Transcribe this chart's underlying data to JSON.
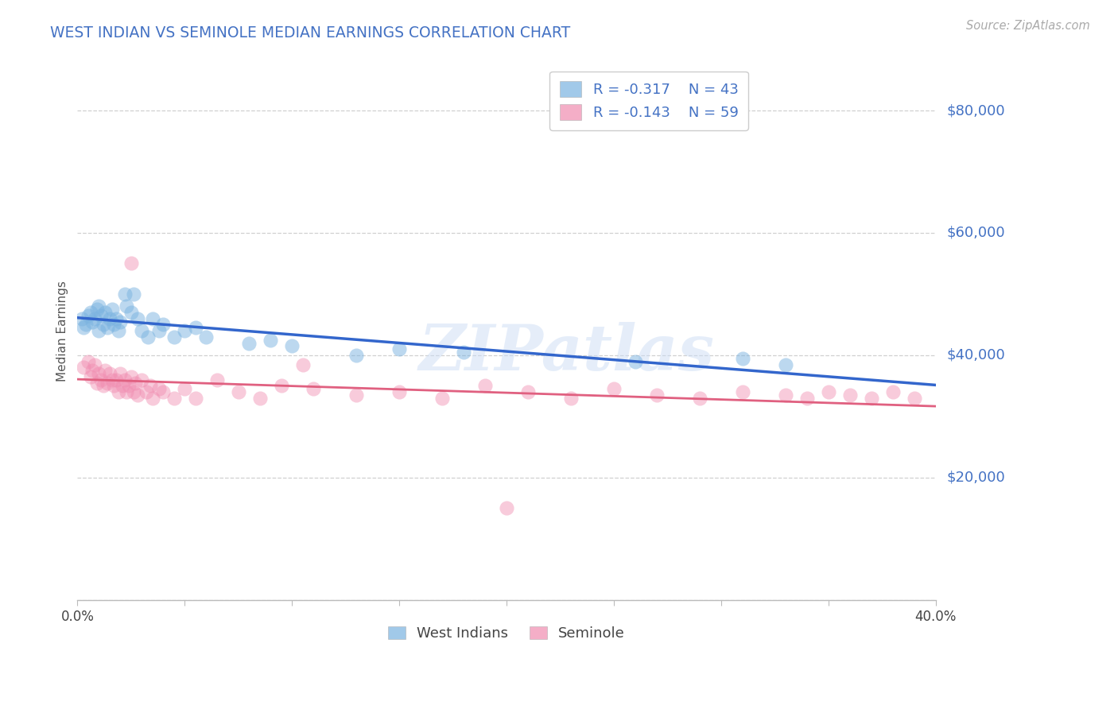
{
  "title": "WEST INDIAN VS SEMINOLE MEDIAN EARNINGS CORRELATION CHART",
  "source": "Source: ZipAtlas.com",
  "ylabel": "Median Earnings",
  "x_min": 0.0,
  "x_max": 0.4,
  "y_min": 0,
  "y_max": 88000,
  "yticks": [
    0,
    20000,
    40000,
    60000,
    80000
  ],
  "xticks": [
    0.0,
    0.05,
    0.1,
    0.15,
    0.2,
    0.25,
    0.3,
    0.35,
    0.4
  ],
  "blue_R": -0.317,
  "blue_N": 43,
  "pink_R": -0.143,
  "pink_N": 59,
  "blue_color": "#7ab3e0",
  "pink_color": "#f08cb0",
  "blue_line_color": "#3366cc",
  "pink_line_color": "#e06080",
  "title_color": "#4472c4",
  "right_label_color": "#4472c4",
  "grid_color": "#d0d0d0",
  "legend_label_blue": "West Indians",
  "legend_label_pink": "Seminole",
  "watermark": "ZIPatlas",
  "blue_scatter_x": [
    0.002,
    0.003,
    0.004,
    0.005,
    0.006,
    0.007,
    0.008,
    0.009,
    0.01,
    0.01,
    0.011,
    0.012,
    0.013,
    0.014,
    0.015,
    0.016,
    0.017,
    0.018,
    0.019,
    0.02,
    0.022,
    0.023,
    0.025,
    0.026,
    0.028,
    0.03,
    0.033,
    0.035,
    0.038,
    0.04,
    0.045,
    0.05,
    0.055,
    0.06,
    0.08,
    0.09,
    0.1,
    0.13,
    0.15,
    0.18,
    0.26,
    0.31,
    0.33
  ],
  "blue_scatter_y": [
    46000,
    44500,
    45000,
    46500,
    47000,
    45500,
    46000,
    47500,
    44000,
    48000,
    46500,
    45000,
    47000,
    44500,
    46000,
    47500,
    45000,
    46000,
    44000,
    45500,
    50000,
    48000,
    47000,
    50000,
    46000,
    44000,
    43000,
    46000,
    44000,
    45000,
    43000,
    44000,
    44500,
    43000,
    42000,
    42500,
    41500,
    40000,
    41000,
    40500,
    39000,
    39500,
    38500
  ],
  "pink_scatter_x": [
    0.003,
    0.005,
    0.006,
    0.007,
    0.008,
    0.009,
    0.01,
    0.011,
    0.012,
    0.013,
    0.014,
    0.015,
    0.016,
    0.017,
    0.018,
    0.019,
    0.02,
    0.021,
    0.022,
    0.023,
    0.024,
    0.025,
    0.026,
    0.027,
    0.028,
    0.03,
    0.032,
    0.034,
    0.035,
    0.038,
    0.04,
    0.045,
    0.05,
    0.055,
    0.065,
    0.075,
    0.085,
    0.095,
    0.11,
    0.13,
    0.15,
    0.17,
    0.19,
    0.21,
    0.23,
    0.25,
    0.27,
    0.29,
    0.31,
    0.33,
    0.34,
    0.35,
    0.36,
    0.37,
    0.38,
    0.39,
    0.025,
    0.105,
    0.2
  ],
  "pink_scatter_y": [
    38000,
    39000,
    36500,
    37500,
    38500,
    35500,
    37000,
    36000,
    35000,
    37500,
    35500,
    37000,
    36000,
    35000,
    36000,
    34000,
    37000,
    35000,
    36000,
    34000,
    35000,
    36500,
    34000,
    35500,
    33500,
    36000,
    34000,
    35000,
    33000,
    34500,
    34000,
    33000,
    34500,
    33000,
    36000,
    34000,
    33000,
    35000,
    34500,
    33500,
    34000,
    33000,
    35000,
    34000,
    33000,
    34500,
    33500,
    33000,
    34000,
    33500,
    33000,
    34000,
    33500,
    33000,
    34000,
    33000,
    55000,
    38500,
    15000
  ]
}
